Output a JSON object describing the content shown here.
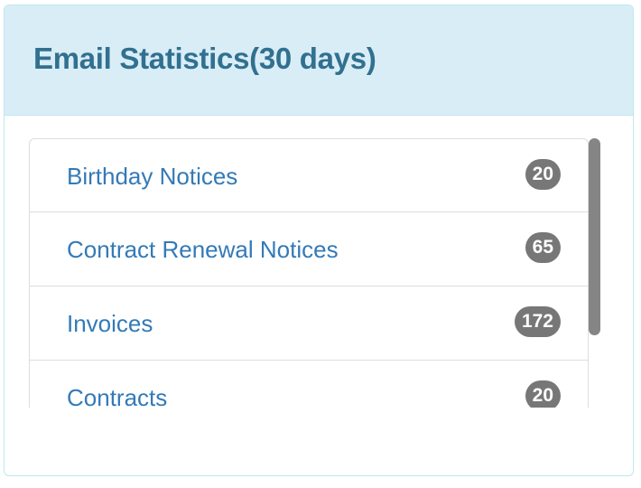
{
  "panel": {
    "title": "Email Statistics(30 days)"
  },
  "items": [
    {
      "label": "Birthday Notices",
      "count": "20"
    },
    {
      "label": "Contract Renewal Notices",
      "count": "65"
    },
    {
      "label": "Invoices",
      "count": "172"
    },
    {
      "label": "Contracts",
      "count": "20"
    }
  ],
  "colors": {
    "heading_bg": "#d9edf7",
    "heading_text": "#31708f",
    "link": "#337ab7",
    "badge_bg": "#777777"
  }
}
